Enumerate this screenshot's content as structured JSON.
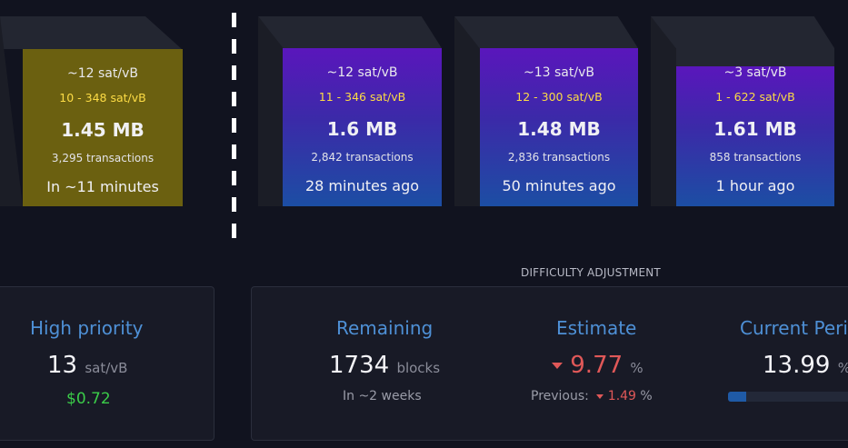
{
  "blocks": [
    {
      "median_fee": "~12 sat/vB",
      "fee_range": "10 - 348 sat/vB",
      "size": "1.45 MB",
      "tx_count": "3,295 transactions",
      "time": "In ~11 minutes",
      "kind": "projected",
      "color": "#6b6010"
    },
    {
      "median_fee": "~12 sat/vB",
      "fee_range": "11 - 346 sat/vB",
      "size": "1.6 MB",
      "tx_count": "2,842 transactions",
      "time": "28 minutes ago",
      "kind": "mined"
    },
    {
      "median_fee": "~13 sat/vB",
      "fee_range": "12 - 300 sat/vB",
      "size": "1.48 MB",
      "tx_count": "2,836 transactions",
      "time": "50 minutes ago",
      "kind": "mined"
    },
    {
      "median_fee": "~3 sat/vB",
      "fee_range": "1 - 622 sat/vB",
      "size": "1.61 MB",
      "tx_count": "858 transactions",
      "time": "1 hour ago",
      "kind": "mined"
    }
  ],
  "fees": {
    "title": "High priority",
    "value": "13",
    "unit": "sat/vB",
    "usd": "$0.72"
  },
  "difficulty": {
    "section_title": "DIFFICULTY ADJUSTMENT",
    "remaining": {
      "title": "Remaining",
      "value": "1734",
      "unit": "blocks",
      "sub": "In ~2 weeks"
    },
    "estimate": {
      "title": "Estimate",
      "value": "9.77",
      "unit": "%",
      "prev_label": "Previous:",
      "prev_value": "1.49",
      "prev_unit": "%"
    },
    "period": {
      "title": "Current Period",
      "value": "13.99",
      "unit": "%",
      "progress": 0.1399
    }
  },
  "colors": {
    "accent": "#4e90d6",
    "positive": "#3bcc49",
    "negative": "#e05858",
    "fee_range": "#fddc45"
  }
}
